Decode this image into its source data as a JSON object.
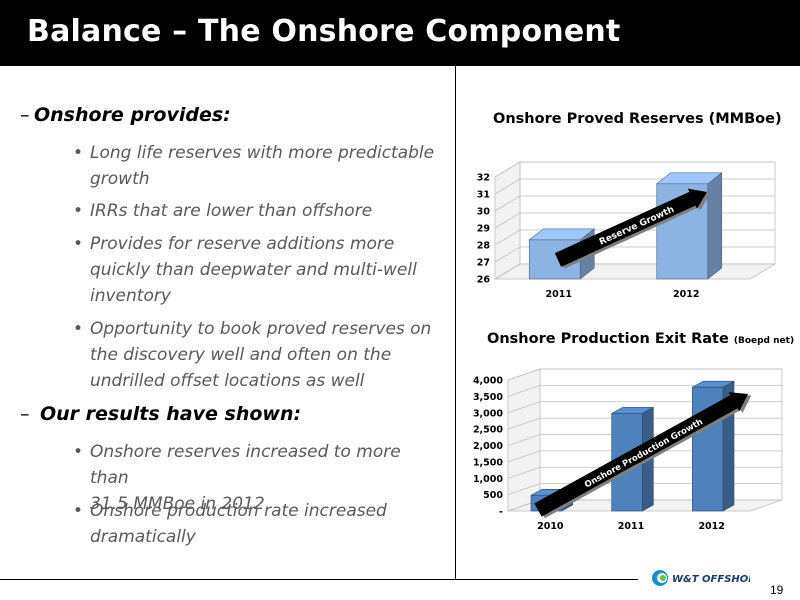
{
  "title": "Balance – The Onshore Component",
  "left": {
    "section1": {
      "heading": "Onshore provides:",
      "bullets": [
        [
          "Long life reserves with more predictable",
          "growth"
        ],
        [
          "IRRs that are lower than offshore"
        ],
        [
          "Provides for reserve additions more",
          "quickly than deepwater and multi-well",
          "inventory"
        ],
        [
          "Opportunity to book proved reserves on",
          "the discovery well and often on the",
          "undrilled offset locations as well"
        ]
      ]
    },
    "section2": {
      "heading": "Our results have shown:",
      "bullets": [
        [
          "Onshore reserves increased to more than",
          "31.5 MMBoe in 2012"
        ],
        [
          "Onshore production rate increased",
          "dramatically"
        ]
      ]
    }
  },
  "chart_data": [
    {
      "type": "bar",
      "title": "Onshore Proved Reserves (MMBoe)",
      "categories": [
        "2011",
        "2012"
      ],
      "values": [
        28.3,
        31.6
      ],
      "ylim": [
        26,
        32
      ],
      "yticks": [
        "26",
        "27",
        "28",
        "29",
        "30",
        "31",
        "32"
      ],
      "annotation": "Reserve Growth",
      "color": "#8db3e2"
    },
    {
      "type": "bar",
      "title": "Onshore Production Exit Rate",
      "title_suffix": "(Boepd net)",
      "categories": [
        "2010",
        "2011",
        "2012"
      ],
      "values": [
        480,
        2980,
        3780
      ],
      "ylim": [
        0,
        4000
      ],
      "yticks": [
        "-",
        "500",
        "1,000",
        "1,500",
        "2,000",
        "2,500",
        "3,000",
        "3,500",
        "4,000"
      ],
      "annotation": "Onshore Production Growth",
      "color": "#4f81bd"
    }
  ],
  "footer": {
    "page_number": "19",
    "logo_text": "W&T OFFSHORE"
  }
}
